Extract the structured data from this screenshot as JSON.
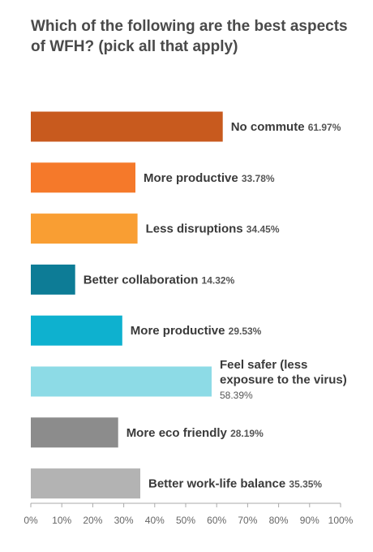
{
  "chart_data": {
    "type": "bar",
    "orientation": "horizontal",
    "title": "Which of the following are the best aspects of WFH? (pick all that apply)",
    "xlim": [
      0,
      100
    ],
    "x_ticks": [
      "0%",
      "10%",
      "20%",
      "30%",
      "40%",
      "50%",
      "60%",
      "70%",
      "80%",
      "90%",
      "100%"
    ],
    "grid": false,
    "categories": [
      "No commute",
      "More productive",
      "Less disruptions",
      "Better collaboration",
      "More productive",
      "Feel safer (less exposure to the virus)",
      "More eco friendly",
      "Better work-life balance"
    ],
    "category_lines": [
      [
        "No commute"
      ],
      [
        "More productive"
      ],
      [
        "Less disruptions"
      ],
      [
        "Better collaboration"
      ],
      [
        "More productive"
      ],
      [
        "Feel safer (less",
        "exposure to the virus)"
      ],
      [
        "More eco friendly"
      ],
      [
        "Better work-life balance"
      ]
    ],
    "values": [
      61.97,
      33.78,
      34.45,
      14.32,
      29.53,
      58.39,
      28.19,
      35.35
    ],
    "value_labels": [
      "61.97%",
      "33.78%",
      "34.45%",
      "14.32%",
      "29.53%",
      "58.39%",
      "28.19%",
      "35.35%"
    ],
    "colors": [
      "#c85a1e",
      "#f5792a",
      "#f99e33",
      "#0d7c96",
      "#0eb1cf",
      "#8ddbe6",
      "#8c8c8c",
      "#b3b3b3"
    ]
  }
}
